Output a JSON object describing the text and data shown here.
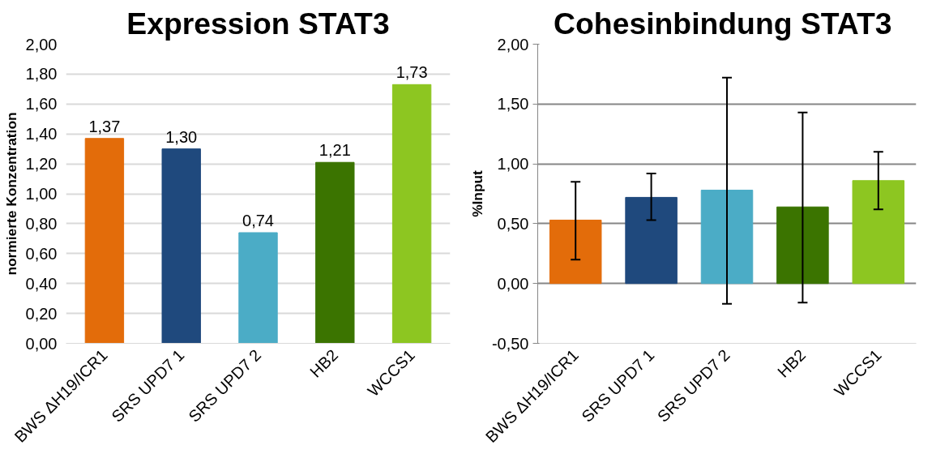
{
  "chart_data": [
    {
      "type": "bar",
      "title": "Expression STAT3",
      "ylabel": "normierte Konzentration",
      "categories": [
        "BWS ΔH19/ICR1",
        "SRS UPD7 1",
        "SRS UPD7 2",
        "HB2",
        "WCCS1"
      ],
      "values": [
        1.37,
        1.3,
        0.74,
        1.21,
        1.73
      ],
      "value_labels": [
        "1,37",
        "1,30",
        "0,74",
        "1,21",
        "1,73"
      ],
      "colors": [
        "#e36c0a",
        "#1f497d",
        "#4bacc6",
        "#3b7400",
        "#8dc621"
      ],
      "ylim": [
        0,
        2
      ],
      "yticks": [
        {
          "value": 0,
          "label": "0,00"
        },
        {
          "value": 0.2,
          "label": "0,20"
        },
        {
          "value": 0.4,
          "label": "0,40"
        },
        {
          "value": 0.6,
          "label": "0,60"
        },
        {
          "value": 0.8,
          "label": "0,80"
        },
        {
          "value": 1.0,
          "label": "1,00"
        },
        {
          "value": 1.2,
          "label": "1,20"
        },
        {
          "value": 1.4,
          "label": "1,40"
        },
        {
          "value": 1.6,
          "label": "1,60"
        },
        {
          "value": 1.8,
          "label": "1,80"
        },
        {
          "value": 2.0,
          "label": "2,00"
        }
      ],
      "grid": "y"
    },
    {
      "type": "bar",
      "title": "Cohesinbindung  STAT3",
      "ylabel": "%Input",
      "categories": [
        "BWS ΔH19/ICR1",
        "SRS UPD7 1",
        "SRS UPD7 2",
        "HB2",
        "WCCS1"
      ],
      "values": [
        0.53,
        0.72,
        0.78,
        0.64,
        0.86
      ],
      "errors": [
        [
          0.2,
          0.85
        ],
        [
          0.53,
          0.92
        ],
        [
          -0.17,
          1.72
        ],
        [
          -0.16,
          1.43
        ],
        [
          0.62,
          1.1
        ]
      ],
      "colors": [
        "#e36c0a",
        "#1f497d",
        "#4bacc6",
        "#3b7400",
        "#8dc621"
      ],
      "ylim": [
        -0.5,
        2
      ],
      "yticks": [
        {
          "value": -0.5,
          "label": "-0,50"
        },
        {
          "value": 0,
          "label": "0,00"
        },
        {
          "value": 0.5,
          "label": "0,50"
        },
        {
          "value": 1.0,
          "label": "1,00"
        },
        {
          "value": 1.5,
          "label": "1,50"
        },
        {
          "value": 2.0,
          "label": "2,00"
        }
      ],
      "grid": "y"
    }
  ]
}
